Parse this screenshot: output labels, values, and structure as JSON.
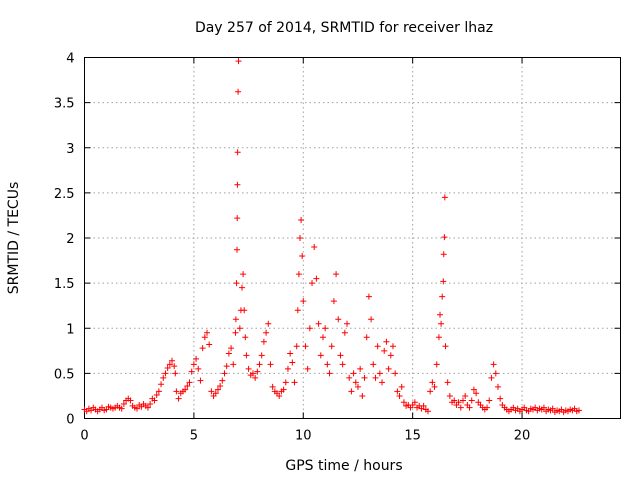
{
  "chart_data": {
    "type": "scatter",
    "title": "Day 257 of 2014, SRMTID for receiver lhaz",
    "xlabel": "GPS time / hours",
    "ylabel": "SRMTID / TECUs",
    "xlim": [
      0,
      24.5
    ],
    "ylim": [
      0,
      4
    ],
    "xticks": [
      0,
      5,
      10,
      15,
      20
    ],
    "xtick_labels": [
      "0",
      "5",
      "10",
      "15",
      "20"
    ],
    "yticks": [
      0,
      0.5,
      1,
      1.5,
      2,
      2.5,
      3,
      3.5,
      4
    ],
    "ytick_labels": [
      "0",
      "0.5",
      "1",
      "1.5",
      "2",
      "2.5",
      "3",
      "3.5",
      "4"
    ],
    "grid": true,
    "marker": "plus",
    "color": "#ff0000",
    "series": [
      {
        "name": "SRMTID",
        "points": [
          [
            0.0,
            0.1
          ],
          [
            0.1,
            0.08
          ],
          [
            0.2,
            0.11
          ],
          [
            0.3,
            0.09
          ],
          [
            0.4,
            0.12
          ],
          [
            0.5,
            0.1
          ],
          [
            0.6,
            0.08
          ],
          [
            0.7,
            0.1
          ],
          [
            0.8,
            0.12
          ],
          [
            0.9,
            0.09
          ],
          [
            1.0,
            0.1
          ],
          [
            1.1,
            0.13
          ],
          [
            1.2,
            0.12
          ],
          [
            1.3,
            0.11
          ],
          [
            1.4,
            0.12
          ],
          [
            1.5,
            0.14
          ],
          [
            1.6,
            0.12
          ],
          [
            1.7,
            0.11
          ],
          [
            1.8,
            0.16
          ],
          [
            1.9,
            0.2
          ],
          [
            2.0,
            0.22
          ],
          [
            2.1,
            0.2
          ],
          [
            2.2,
            0.14
          ],
          [
            2.3,
            0.12
          ],
          [
            2.4,
            0.11
          ],
          [
            2.5,
            0.15
          ],
          [
            2.6,
            0.13
          ],
          [
            2.7,
            0.16
          ],
          [
            2.8,
            0.14
          ],
          [
            2.9,
            0.12
          ],
          [
            3.0,
            0.16
          ],
          [
            3.1,
            0.22
          ],
          [
            3.2,
            0.2
          ],
          [
            3.3,
            0.26
          ],
          [
            3.4,
            0.3
          ],
          [
            3.5,
            0.38
          ],
          [
            3.6,
            0.45
          ],
          [
            3.7,
            0.5
          ],
          [
            3.8,
            0.56
          ],
          [
            3.9,
            0.6
          ],
          [
            4.0,
            0.64
          ],
          [
            4.1,
            0.58
          ],
          [
            4.15,
            0.5
          ],
          [
            4.2,
            0.3
          ],
          [
            4.3,
            0.22
          ],
          [
            4.4,
            0.28
          ],
          [
            4.5,
            0.3
          ],
          [
            4.6,
            0.32
          ],
          [
            4.7,
            0.36
          ],
          [
            4.8,
            0.4
          ],
          [
            4.9,
            0.52
          ],
          [
            5.0,
            0.6
          ],
          [
            5.1,
            0.66
          ],
          [
            5.2,
            0.55
          ],
          [
            5.3,
            0.42
          ],
          [
            5.4,
            0.78
          ],
          [
            5.5,
            0.9
          ],
          [
            5.6,
            0.95
          ],
          [
            5.7,
            0.82
          ],
          [
            5.8,
            0.3
          ],
          [
            5.9,
            0.25
          ],
          [
            6.0,
            0.28
          ],
          [
            6.1,
            0.32
          ],
          [
            6.2,
            0.36
          ],
          [
            6.3,
            0.42
          ],
          [
            6.4,
            0.5
          ],
          [
            6.5,
            0.58
          ],
          [
            6.6,
            0.72
          ],
          [
            6.7,
            0.78
          ],
          [
            6.8,
            0.6
          ],
          [
            6.9,
            0.95
          ],
          [
            6.92,
            1.1
          ],
          [
            6.95,
            1.5
          ],
          [
            6.97,
            1.87
          ],
          [
            6.98,
            2.22
          ],
          [
            6.99,
            2.59
          ],
          [
            7.0,
            2.95
          ],
          [
            7.02,
            3.62
          ],
          [
            7.04,
            3.96
          ],
          [
            7.1,
            1.0
          ],
          [
            7.15,
            1.2
          ],
          [
            7.2,
            1.45
          ],
          [
            7.25,
            1.6
          ],
          [
            7.3,
            1.2
          ],
          [
            7.35,
            0.9
          ],
          [
            7.4,
            0.7
          ],
          [
            7.5,
            0.55
          ],
          [
            7.6,
            0.48
          ],
          [
            7.7,
            0.5
          ],
          [
            7.8,
            0.45
          ],
          [
            7.9,
            0.52
          ],
          [
            8.0,
            0.6
          ],
          [
            8.1,
            0.7
          ],
          [
            8.2,
            0.85
          ],
          [
            8.3,
            0.95
          ],
          [
            8.4,
            1.05
          ],
          [
            8.5,
            0.6
          ],
          [
            8.6,
            0.35
          ],
          [
            8.7,
            0.3
          ],
          [
            8.8,
            0.28
          ],
          [
            8.9,
            0.25
          ],
          [
            9.0,
            0.3
          ],
          [
            9.1,
            0.32
          ],
          [
            9.2,
            0.4
          ],
          [
            9.3,
            0.55
          ],
          [
            9.4,
            0.72
          ],
          [
            9.5,
            0.62
          ],
          [
            9.6,
            0.4
          ],
          [
            9.7,
            0.8
          ],
          [
            9.75,
            1.2
          ],
          [
            9.8,
            1.6
          ],
          [
            9.85,
            2.0
          ],
          [
            9.9,
            2.2
          ],
          [
            9.95,
            1.8
          ],
          [
            10.0,
            1.3
          ],
          [
            10.1,
            0.8
          ],
          [
            10.2,
            0.55
          ],
          [
            10.3,
            1.0
          ],
          [
            10.4,
            1.5
          ],
          [
            10.5,
            1.9
          ],
          [
            10.6,
            1.55
          ],
          [
            10.7,
            1.05
          ],
          [
            10.8,
            0.7
          ],
          [
            10.9,
            0.9
          ],
          [
            11.0,
            1.0
          ],
          [
            11.1,
            0.6
          ],
          [
            11.2,
            0.5
          ],
          [
            11.3,
            0.8
          ],
          [
            11.4,
            1.3
          ],
          [
            11.5,
            1.6
          ],
          [
            11.6,
            1.1
          ],
          [
            11.7,
            0.7
          ],
          [
            11.8,
            0.6
          ],
          [
            11.9,
            0.95
          ],
          [
            12.0,
            1.05
          ],
          [
            12.1,
            0.45
          ],
          [
            12.2,
            0.3
          ],
          [
            12.3,
            0.5
          ],
          [
            12.4,
            0.4
          ],
          [
            12.5,
            0.35
          ],
          [
            12.6,
            0.55
          ],
          [
            12.7,
            0.25
          ],
          [
            12.8,
            0.45
          ],
          [
            12.9,
            0.9
          ],
          [
            13.0,
            1.35
          ],
          [
            13.1,
            1.1
          ],
          [
            13.2,
            0.6
          ],
          [
            13.3,
            0.45
          ],
          [
            13.4,
            0.8
          ],
          [
            13.5,
            0.5
          ],
          [
            13.6,
            0.4
          ],
          [
            13.7,
            0.75
          ],
          [
            13.8,
            0.85
          ],
          [
            13.9,
            0.55
          ],
          [
            14.0,
            0.7
          ],
          [
            14.1,
            0.8
          ],
          [
            14.2,
            0.5
          ],
          [
            14.3,
            0.3
          ],
          [
            14.4,
            0.25
          ],
          [
            14.5,
            0.35
          ],
          [
            14.6,
            0.18
          ],
          [
            14.7,
            0.14
          ],
          [
            14.8,
            0.15
          ],
          [
            14.9,
            0.12
          ],
          [
            15.0,
            0.15
          ],
          [
            15.1,
            0.18
          ],
          [
            15.2,
            0.12
          ],
          [
            15.3,
            0.14
          ],
          [
            15.4,
            0.11
          ],
          [
            15.5,
            0.14
          ],
          [
            15.6,
            0.1
          ],
          [
            15.7,
            0.08
          ],
          [
            15.8,
            0.3
          ],
          [
            15.9,
            0.4
          ],
          [
            16.0,
            0.35
          ],
          [
            16.1,
            0.6
          ],
          [
            16.2,
            0.9
          ],
          [
            16.25,
            1.15
          ],
          [
            16.3,
            1.05
          ],
          [
            16.35,
            1.35
          ],
          [
            16.4,
            1.52
          ],
          [
            16.42,
            1.82
          ],
          [
            16.45,
            2.01
          ],
          [
            16.47,
            2.45
          ],
          [
            16.5,
            0.8
          ],
          [
            16.6,
            0.4
          ],
          [
            16.7,
            0.25
          ],
          [
            16.8,
            0.18
          ],
          [
            16.9,
            0.2
          ],
          [
            17.0,
            0.15
          ],
          [
            17.1,
            0.18
          ],
          [
            17.2,
            0.12
          ],
          [
            17.3,
            0.2
          ],
          [
            17.4,
            0.25
          ],
          [
            17.5,
            0.15
          ],
          [
            17.6,
            0.12
          ],
          [
            17.7,
            0.2
          ],
          [
            17.8,
            0.32
          ],
          [
            17.9,
            0.28
          ],
          [
            18.0,
            0.18
          ],
          [
            18.1,
            0.15
          ],
          [
            18.2,
            0.12
          ],
          [
            18.3,
            0.1
          ],
          [
            18.4,
            0.12
          ],
          [
            18.5,
            0.2
          ],
          [
            18.6,
            0.45
          ],
          [
            18.7,
            0.6
          ],
          [
            18.8,
            0.5
          ],
          [
            18.9,
            0.35
          ],
          [
            19.0,
            0.22
          ],
          [
            19.1,
            0.15
          ],
          [
            19.2,
            0.12
          ],
          [
            19.3,
            0.1
          ],
          [
            19.4,
            0.08
          ],
          [
            19.5,
            0.1
          ],
          [
            19.6,
            0.12
          ],
          [
            19.7,
            0.09
          ],
          [
            19.8,
            0.11
          ],
          [
            19.9,
            0.08
          ],
          [
            20.0,
            0.1
          ],
          [
            20.1,
            0.12
          ],
          [
            20.2,
            0.09
          ],
          [
            20.3,
            0.08
          ],
          [
            20.4,
            0.11
          ],
          [
            20.5,
            0.1
          ],
          [
            20.6,
            0.12
          ],
          [
            20.7,
            0.09
          ],
          [
            20.8,
            0.11
          ],
          [
            20.9,
            0.1
          ],
          [
            21.0,
            0.12
          ],
          [
            21.1,
            0.08
          ],
          [
            21.2,
            0.1
          ],
          [
            21.3,
            0.09
          ],
          [
            21.4,
            0.11
          ],
          [
            21.5,
            0.07
          ],
          [
            21.6,
            0.09
          ],
          [
            21.7,
            0.08
          ],
          [
            21.8,
            0.1
          ],
          [
            21.9,
            0.07
          ],
          [
            22.0,
            0.09
          ],
          [
            22.1,
            0.08
          ],
          [
            22.2,
            0.1
          ],
          [
            22.3,
            0.09
          ],
          [
            22.4,
            0.11
          ],
          [
            22.5,
            0.08
          ],
          [
            22.6,
            0.09
          ]
        ]
      }
    ]
  }
}
